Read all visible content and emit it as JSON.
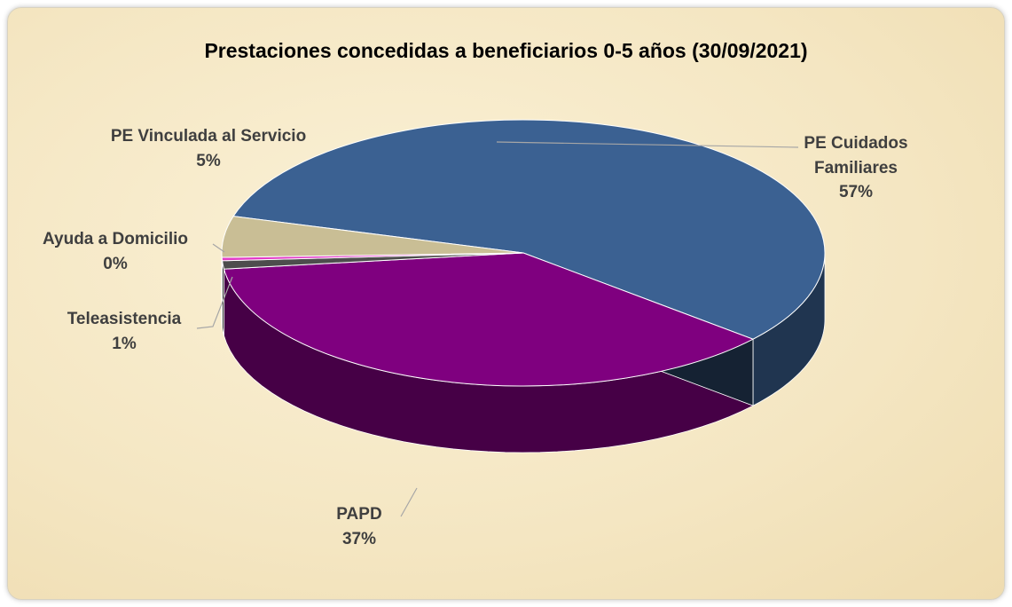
{
  "chart_data": {
    "type": "pie",
    "title": "Prestaciones concedidas a beneficiarios 0-5 años (30/09/2021)",
    "categories": [
      "PE Cuidados Familiares",
      "PAPD",
      "Teleasistencia",
      "Ayuda a Domicilio",
      "PE Vinculada al Servicio"
    ],
    "values": [
      57,
      37,
      1,
      0.4,
      5
    ],
    "value_labels": [
      "57%",
      "37%",
      "1%",
      "0%",
      "5%"
    ],
    "colors": [
      "#3b6192",
      "#7f007f",
      "#4d4d4d",
      "#e23cc8",
      "#c9be95"
    ]
  }
}
